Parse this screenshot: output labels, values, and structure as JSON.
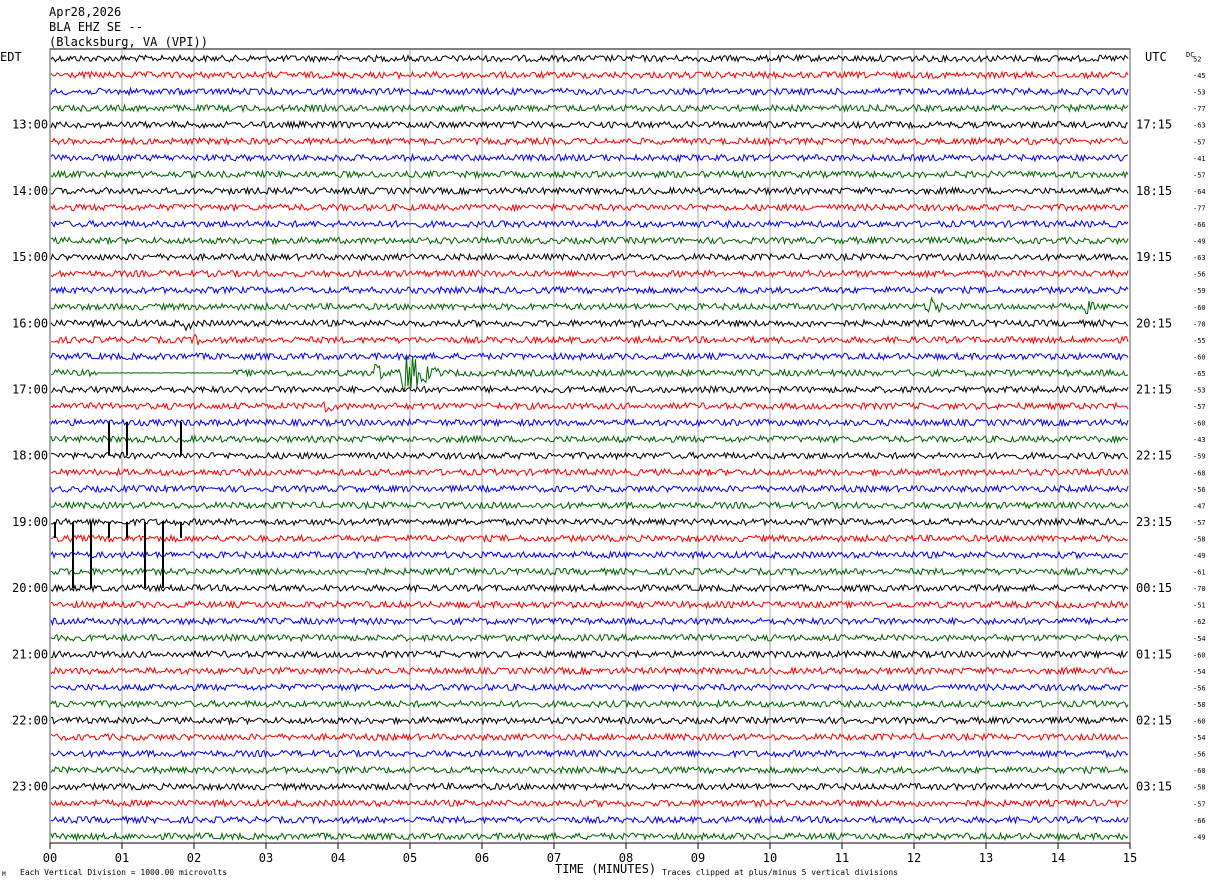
{
  "header": {
    "date": "Apr28,2026",
    "station": "BLA EHZ SE --",
    "location": "(Blacksburg, VA (VPI))"
  },
  "left_timezone": "EDT",
  "right_timezone": "UTC",
  "dc_label": "DC",
  "footer": {
    "scale_note": "Each Vertical Division = 1000.00 microvolts",
    "clip_note": "Traces clipped at plus/minus 5 vertical divisions",
    "corner_mark": "M"
  },
  "trace_colors": [
    "#000000",
    "#ff0000",
    "#0000ff",
    "#006400"
  ],
  "chart_data": {
    "type": "line",
    "title": "",
    "xlabel": "TIME (MINUTES)",
    "ylabel": "",
    "xlim": [
      0,
      15
    ],
    "x_ticks": [
      "00",
      "01",
      "02",
      "03",
      "04",
      "05",
      "06",
      "07",
      "08",
      "09",
      "10",
      "11",
      "12",
      "13",
      "14",
      "15"
    ],
    "grid": true,
    "left_hour_labels": [
      "13:00",
      "14:00",
      "15:00",
      "16:00",
      "17:00",
      "18:00",
      "19:00",
      "20:00",
      "21:00",
      "22:00",
      "23:00"
    ],
    "right_hour_labels": [
      "17:15",
      "18:15",
      "19:15",
      "20:15",
      "21:15",
      "22:15",
      "23:15",
      "00:15",
      "01:15",
      "02:15",
      "03:15"
    ],
    "first_hour_label_row": 4,
    "dc_offsets": [
      52,
      -45,
      -53,
      -77,
      -63,
      -57,
      -41,
      -57,
      -64,
      -77,
      -66,
      -49,
      -63,
      -56,
      -59,
      -60,
      -70,
      -55,
      -60,
      -65,
      -53,
      -57,
      -60,
      -43,
      -59,
      -68,
      -56,
      -47,
      -57,
      -58,
      -49,
      -61,
      -70,
      -51,
      -62,
      -54,
      -60,
      -54,
      -56,
      -58,
      -60,
      -54,
      -56,
      -60,
      -58,
      -57,
      -66,
      -49
    ],
    "traces_per_hour": 4,
    "minutes_per_trace": 15,
    "series": [
      {
        "row": 15,
        "events": [
          {
            "minute": 12.25,
            "amp": 12,
            "dur": 0.3
          },
          {
            "minute": 14.4,
            "amp": 8,
            "dur": 0.35
          }
        ]
      },
      {
        "row": 16,
        "events": [
          {
            "minute": 1.9,
            "amp": 7,
            "dur": 0.45
          },
          {
            "minute": 10.6,
            "amp": 4,
            "dur": 0.3
          }
        ]
      },
      {
        "row": 17,
        "events": [
          {
            "minute": 2.05,
            "amp": 6,
            "dur": 0.3
          }
        ]
      },
      {
        "row": 19,
        "flat": [
          0.65,
          2.55
        ],
        "events": [
          {
            "minute": 4.55,
            "amp": 12,
            "dur": 0.2
          },
          {
            "minute": 4.92,
            "amp": 28,
            "dur": 0.6
          }
        ]
      },
      {
        "row": 21,
        "events": [
          {
            "minute": 3.8,
            "amp": 9,
            "dur": 0.4
          }
        ]
      },
      {
        "row": 42,
        "events": [
          {
            "minute": 11.75,
            "amp": 4,
            "dur": 0.25
          }
        ]
      }
    ],
    "spikes": [
      {
        "row": 24,
        "minutes": [
          0.75,
          1.0,
          1.75
        ],
        "up": 34,
        "down": 0
      },
      {
        "row": 28,
        "minutes": [
          0.0,
          0.25,
          0.5,
          0.75,
          1.0,
          1.25,
          1.5,
          1.75
        ],
        "up": 0,
        "down": 16
      },
      {
        "row": 27,
        "minutes": [
          0.25,
          0.5,
          1.25,
          1.5,
          1.75
        ],
        "up": 0,
        "down": 0
      },
      {
        "row": 32,
        "minutes": [
          0.25,
          0.5,
          1.25,
          1.5
        ],
        "up": 52,
        "down": 0
      }
    ]
  }
}
